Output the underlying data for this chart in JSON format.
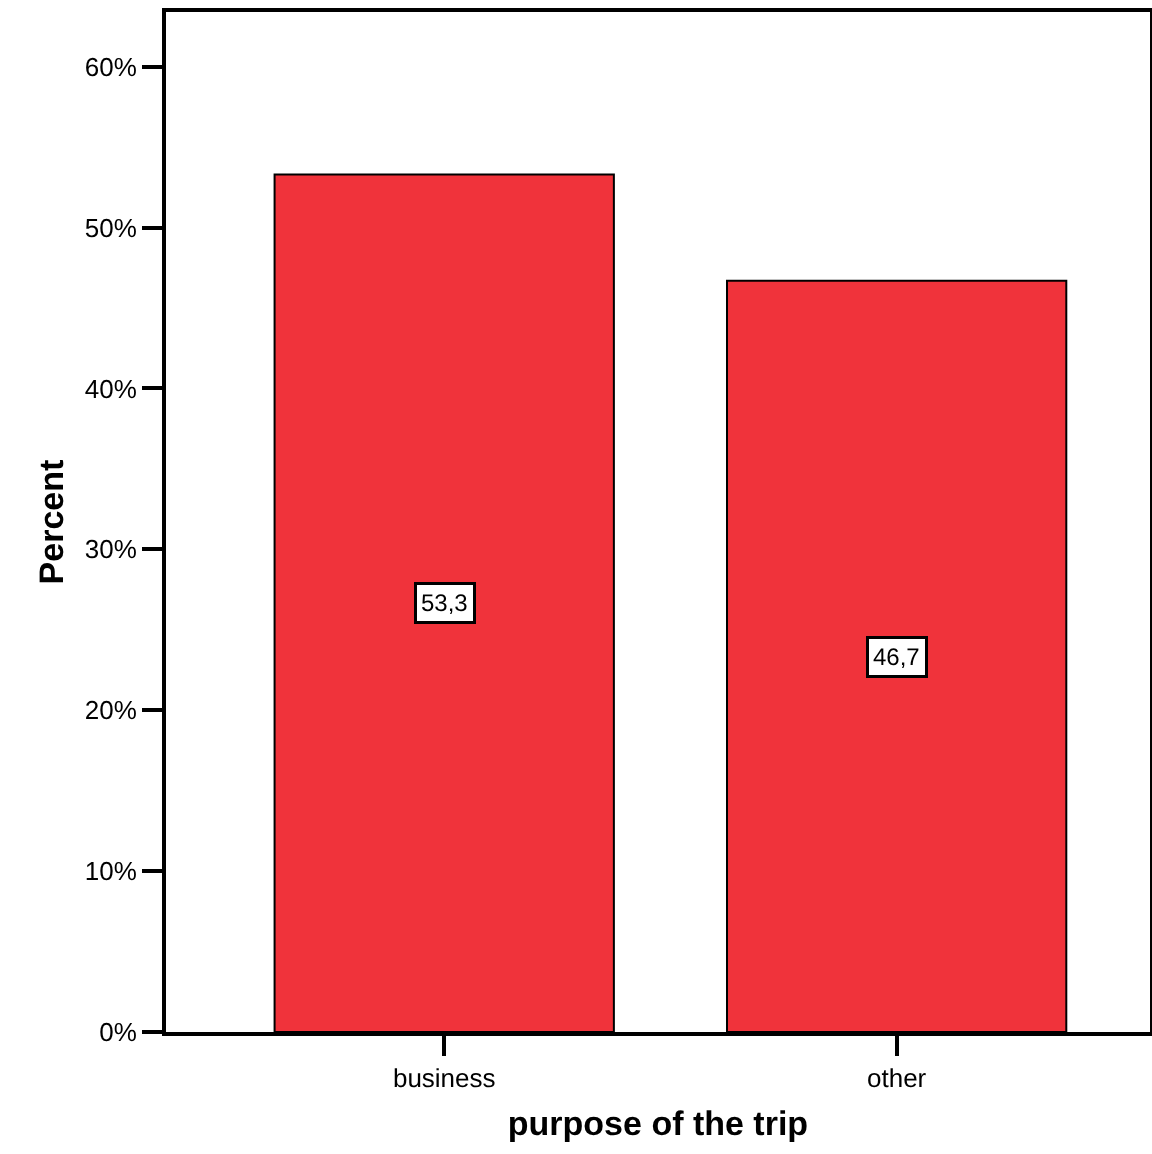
{
  "chart_data": {
    "type": "bar",
    "xlabel": "purpose of the trip",
    "ylabel": "Percent",
    "categories": [
      "business",
      "other"
    ],
    "values": [
      53.3,
      46.7
    ],
    "color": "#f0333b",
    "value_labels": [
      "53,3",
      "46,7"
    ],
    "ylim": [
      0,
      63.4
    ],
    "yticks": [
      {
        "value": 0,
        "label": "0%"
      },
      {
        "value": 10,
        "label": "10%"
      },
      {
        "value": 20,
        "label": "20%"
      },
      {
        "value": 30,
        "label": "30%"
      },
      {
        "value": 40,
        "label": "40%"
      },
      {
        "value": 50,
        "label": "50%"
      },
      {
        "value": 60,
        "label": "60%"
      }
    ]
  }
}
